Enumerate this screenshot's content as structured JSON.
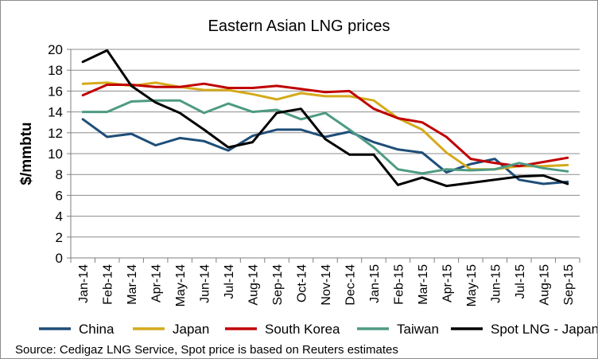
{
  "chart_data": {
    "type": "line",
    "title": "Eastern Asian LNG prices",
    "xlabel": "",
    "ylabel": "$/mmbtu",
    "ylim": [
      0,
      20
    ],
    "yticks": [
      0,
      2,
      4,
      6,
      8,
      10,
      12,
      14,
      16,
      18,
      20
    ],
    "grid": true,
    "legend_position": "bottom",
    "categories": [
      "Jan-14",
      "Feb-14",
      "Mar-14",
      "Apr-14",
      "May-14",
      "Jun-14",
      "Jul-14",
      "Aug-14",
      "Sep-14",
      "Oct-14",
      "Nov-14",
      "Dec-14",
      "Jan-15",
      "Feb-15",
      "Mar-15",
      "Apr-15",
      "May-15",
      "Jun-15",
      "Jul-15",
      "Aug-15",
      "Sep-15"
    ],
    "series": [
      {
        "name": "China",
        "color": "#1f4e79",
        "values": [
          13.3,
          11.6,
          11.9,
          10.8,
          11.5,
          11.2,
          10.3,
          11.7,
          12.3,
          12.3,
          11.6,
          12.1,
          11.1,
          10.4,
          10.1,
          8.2,
          9.0,
          9.5,
          7.5,
          7.1,
          7.3
        ]
      },
      {
        "name": "Japan",
        "color": "#d4aa1c",
        "values": [
          16.7,
          16.8,
          16.5,
          16.8,
          16.4,
          16.1,
          16.1,
          15.7,
          15.2,
          15.8,
          15.5,
          15.5,
          15.1,
          13.4,
          12.3,
          10.1,
          8.5,
          8.5,
          8.8,
          8.8,
          8.9
        ]
      },
      {
        "name": "South Korea",
        "color": "#c00000",
        "values": [
          15.6,
          16.6,
          16.6,
          16.4,
          16.4,
          16.7,
          16.3,
          16.3,
          16.5,
          16.2,
          15.9,
          16.0,
          14.3,
          13.4,
          13.0,
          11.6,
          9.5,
          9.1,
          8.8,
          9.2,
          9.6
        ]
      },
      {
        "name": "Taiwan",
        "color": "#4e9a83",
        "values": [
          14.0,
          14.0,
          15.0,
          15.1,
          15.1,
          13.9,
          14.8,
          14.0,
          14.2,
          13.3,
          13.9,
          12.3,
          10.6,
          8.5,
          8.1,
          8.5,
          8.4,
          8.5,
          9.1,
          8.6,
          8.3
        ]
      },
      {
        "name": "Spot LNG - Japan",
        "color": "#000000",
        "values": [
          18.8,
          19.9,
          16.5,
          14.9,
          13.9,
          12.3,
          10.6,
          11.1,
          13.9,
          14.3,
          11.4,
          9.9,
          9.9,
          7.0,
          7.7,
          6.9,
          7.2,
          7.5,
          7.8,
          7.9,
          7.1
        ]
      }
    ],
    "source_note": "Source: Cedigaz LNG Service, Spot price is based on Reuters estimates"
  }
}
